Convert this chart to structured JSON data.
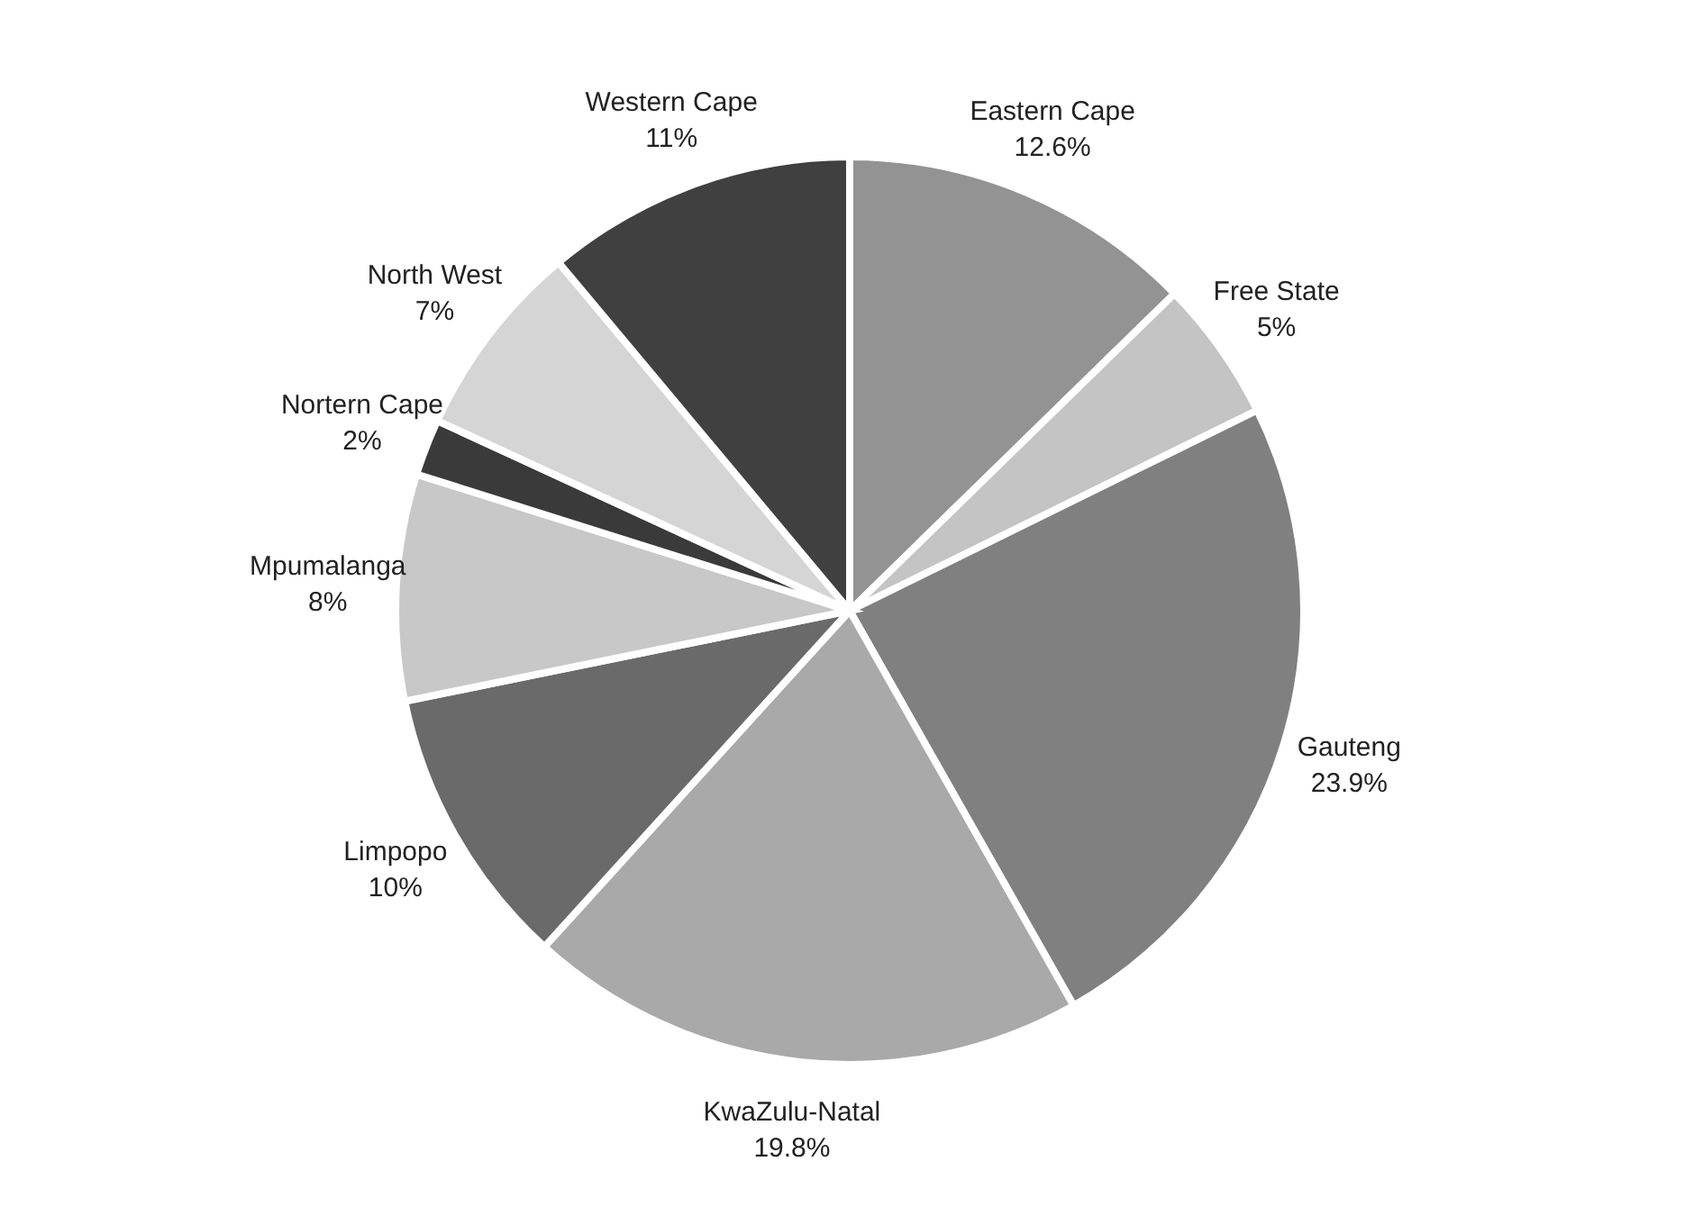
{
  "chart_data": {
    "type": "pie",
    "categories": [
      "Eastern Cape",
      "Free State",
      "Gauteng",
      "KwaZulu-Natal",
      "Limpopo",
      "Mpumalanga",
      "Nortern Cape",
      "North West",
      "Western Cape"
    ],
    "values": [
      12.6,
      5,
      23.9,
      19.8,
      10,
      8,
      2,
      7,
      11
    ],
    "value_labels": [
      "12.6%",
      "5%",
      "23.9%",
      "19.8%",
      "10%",
      "8%",
      "2%",
      "7%",
      "11%"
    ],
    "colors": [
      "#939393",
      "#c4c4c4",
      "#808080",
      "#a9a9a9",
      "#6a6a6a",
      "#c8c8c8",
      "#3a3a3a",
      "#d5d5d5",
      "#404040"
    ]
  }
}
